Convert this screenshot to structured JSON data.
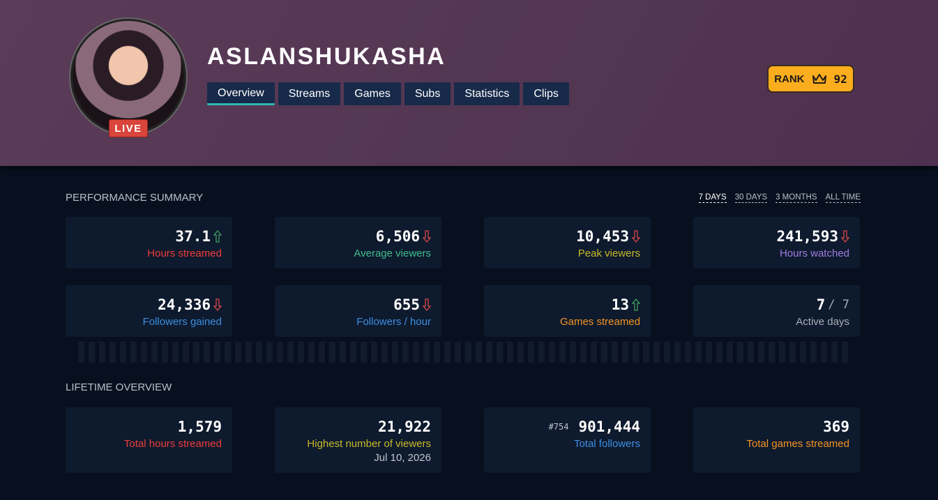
{
  "header": {
    "username": "ASLANSHUKASHA",
    "live": "LIVE",
    "tabs": [
      "Overview",
      "Streams",
      "Games",
      "Subs",
      "Statistics",
      "Clips"
    ],
    "rank_label": "RANK",
    "rank_value": "92"
  },
  "performance": {
    "title": "PERFORMANCE SUMMARY",
    "ranges": [
      "7 DAYS",
      "30 DAYS",
      "3 MONTHS",
      "ALL TIME"
    ],
    "cards": [
      {
        "value": "37.1",
        "label": "Hours streamed"
      },
      {
        "value": "6,506",
        "label": "Average viewers"
      },
      {
        "value": "10,453",
        "label": "Peak viewers"
      },
      {
        "value": "241,593",
        "label": "Hours watched"
      },
      {
        "value": "24,336",
        "label": "Followers gained"
      },
      {
        "value": "655",
        "label": "Followers / hour"
      },
      {
        "value": "13",
        "label": "Games streamed"
      },
      {
        "value": "7",
        "suffix": "/ 7",
        "label": "Active days"
      }
    ]
  },
  "lifetime": {
    "title": "LIFETIME OVERVIEW",
    "cards": [
      {
        "value": "1,579",
        "label": "Total hours streamed"
      },
      {
        "value": "21,922",
        "label": "Highest number of viewers",
        "date": "Jul 10, 2026"
      },
      {
        "value": "901,444",
        "rank": "#754",
        "label": "Total followers"
      },
      {
        "value": "369",
        "label": "Total games streamed"
      }
    ]
  }
}
